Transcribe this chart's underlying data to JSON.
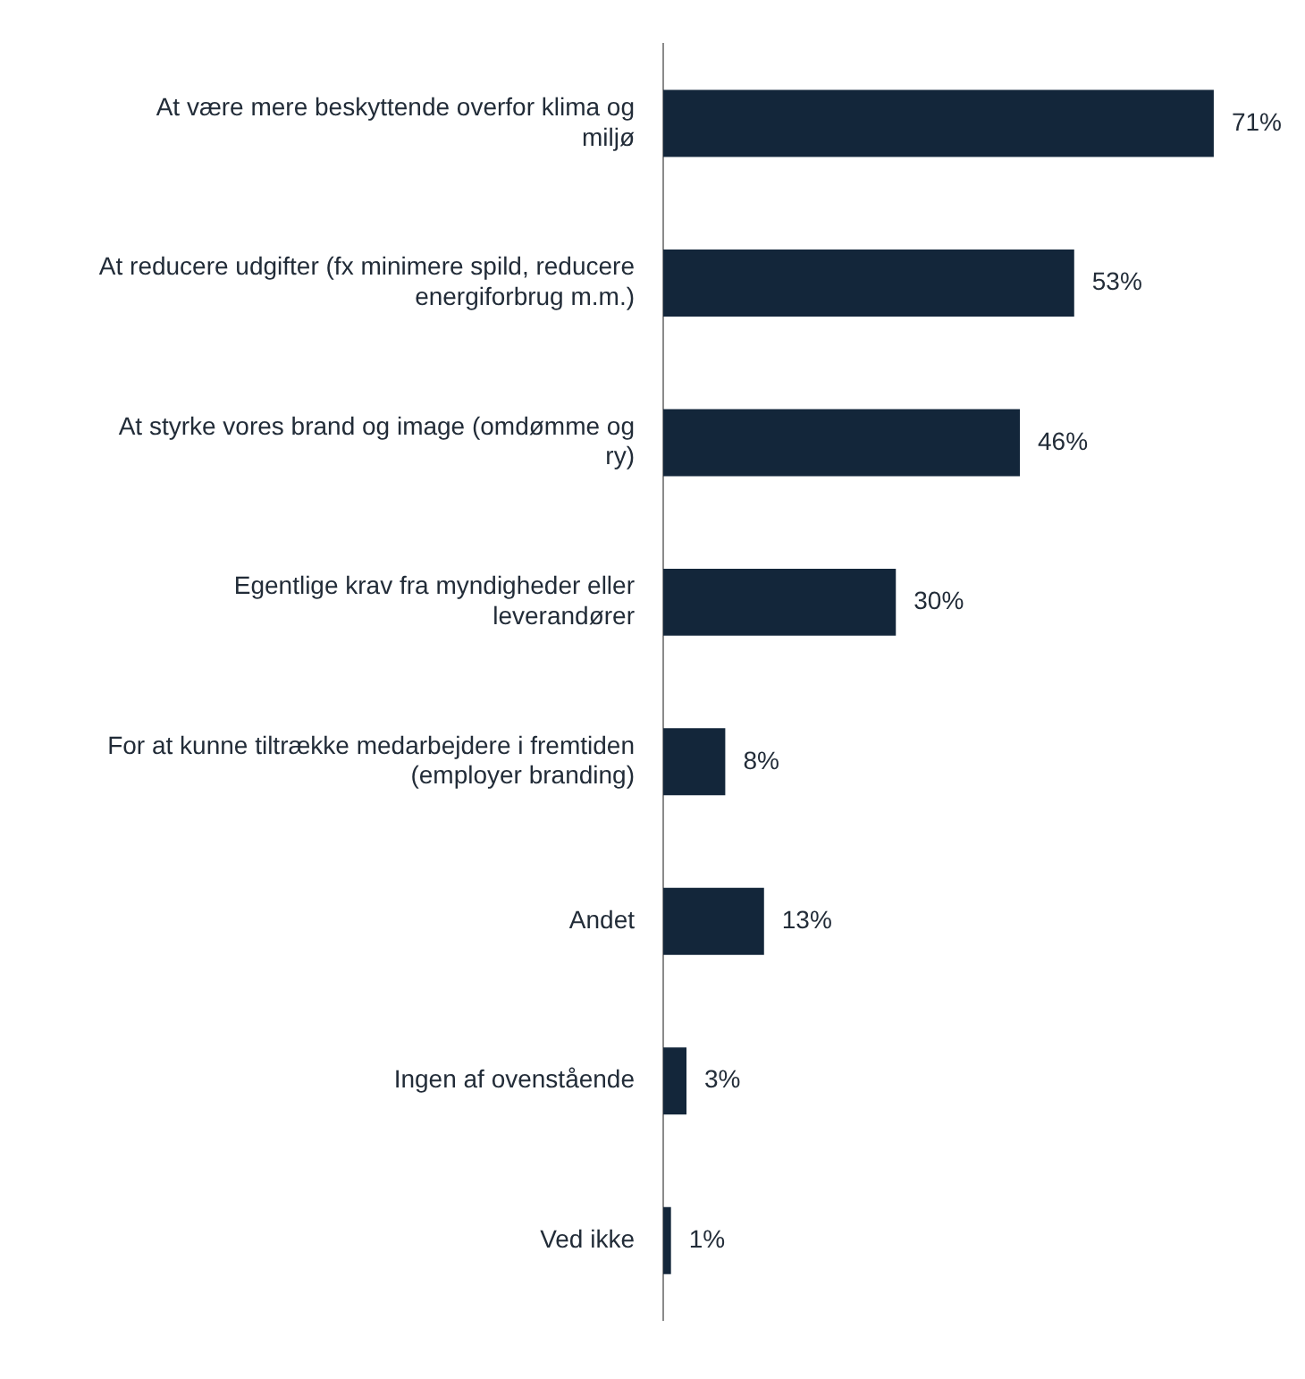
{
  "chart_data": {
    "type": "bar",
    "orientation": "horizontal",
    "data_labels": true,
    "legend": false,
    "color": "#13263a",
    "categories": [
      "At være mere beskyttende overfor klima og miljø",
      "At reducere udgifter (fx minimere spild, reducere energiforbrug m.m.)",
      "At styrke vores brand og image (omdømme og ry)",
      "Egentlige krav fra myndigheder eller leverandører",
      "For at kunne tiltrække medarbejdere i fremtiden (employer branding)",
      "Andet",
      "Ingen af ovenstående",
      "Ved ikke"
    ],
    "values": [
      71,
      53,
      46,
      30,
      8,
      13,
      3,
      1
    ],
    "value_labels": [
      "71%",
      "53%",
      "46%",
      "30%",
      "8%",
      "13%",
      "3%",
      "1%"
    ]
  }
}
